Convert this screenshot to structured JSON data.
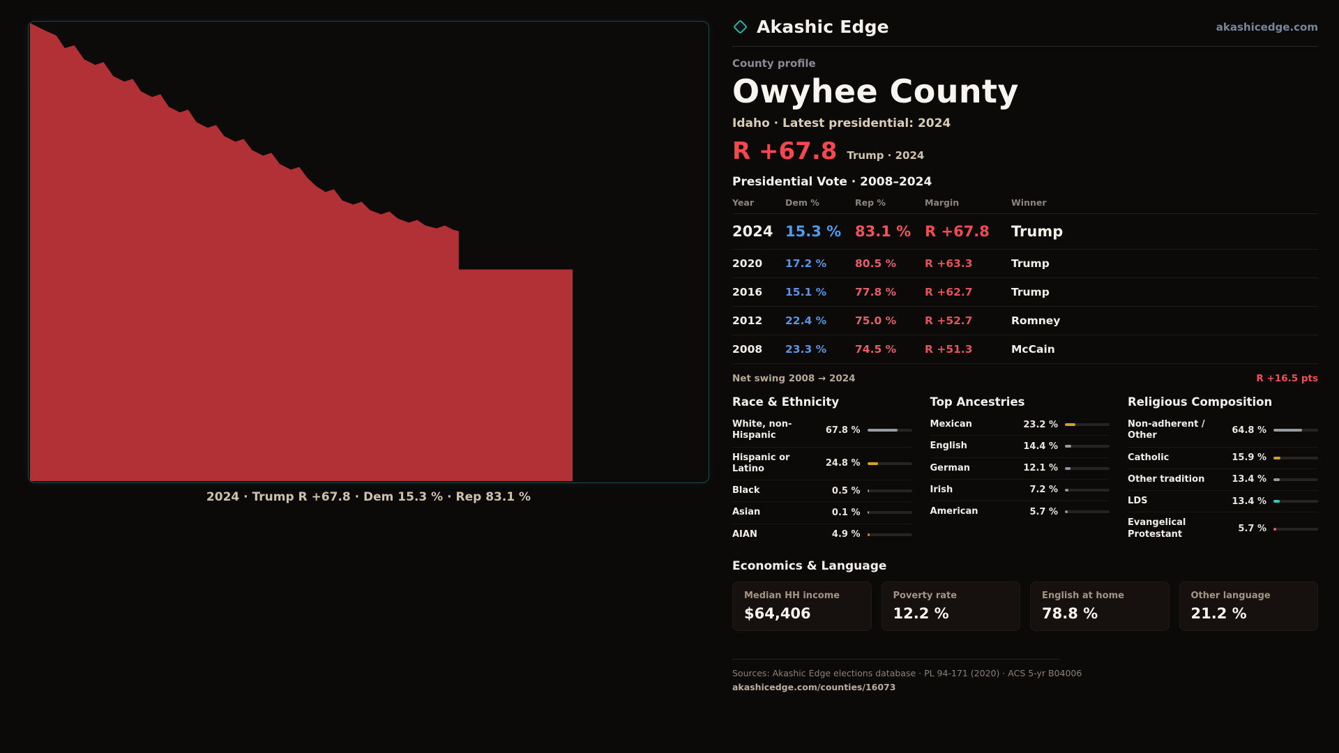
{
  "brand": {
    "name": "Akashic Edge",
    "domain": "akashicedge.com",
    "accent": "#2cb3ab"
  },
  "map": {
    "fill": "#b13137",
    "caption": "2024 · Trump R +67.8 · Dem 15.3 % · Rep 83.1 %"
  },
  "profile": {
    "kicker": "County profile",
    "title": "Owyhee County",
    "subtitle": "Idaho · Latest presidential: 2024",
    "headline_margin": "R +67.8",
    "headline_note": "Trump · 2024",
    "table_title": "Presidential Vote · 2008–2024"
  },
  "table": {
    "headers": [
      "Year",
      "Dem %",
      "Rep %",
      "Margin",
      "Winner"
    ],
    "rows": [
      {
        "year": "2024",
        "dem": "15.3 %",
        "rep": "83.1 %",
        "margin": "R +67.8",
        "winner": "Trump"
      },
      {
        "year": "2020",
        "dem": "17.2 %",
        "rep": "80.5 %",
        "margin": "R +63.3",
        "winner": "Trump"
      },
      {
        "year": "2016",
        "dem": "15.1 %",
        "rep": "77.8 %",
        "margin": "R +62.7",
        "winner": "Trump"
      },
      {
        "year": "2012",
        "dem": "22.4 %",
        "rep": "75.0 %",
        "margin": "R +52.7",
        "winner": "Romney"
      },
      {
        "year": "2008",
        "dem": "23.3 %",
        "rep": "74.5 %",
        "margin": "R +51.3",
        "winner": "McCain"
      }
    ]
  },
  "swing": {
    "label": "Net swing 2008 → 2024",
    "value": "R +16.5 pts"
  },
  "race": {
    "title": "Race & Ethnicity",
    "items": [
      {
        "label": "White, non-Hispanic",
        "value": "67.8 %",
        "pct": 67.8,
        "color": "#969ca1"
      },
      {
        "label": "Hispanic or Latino",
        "value": "24.8 %",
        "pct": 24.8,
        "color": "#d4a222"
      },
      {
        "label": "Black",
        "value": "0.5 %",
        "pct": 0.5,
        "color": "#969ca1"
      },
      {
        "label": "Asian",
        "value": "0.1 %",
        "pct": 0.1,
        "color": "#969ca1"
      },
      {
        "label": "AIAN",
        "value": "4.9 %",
        "pct": 4.9,
        "color": "#e2882a"
      }
    ]
  },
  "ancestry": {
    "title": "Top Ancestries",
    "items": [
      {
        "label": "Mexican",
        "value": "23.2 %",
        "pct": 23.2,
        "color": "#d4a222"
      },
      {
        "label": "English",
        "value": "14.4 %",
        "pct": 14.4,
        "color": "#969ca1"
      },
      {
        "label": "German",
        "value": "12.1 %",
        "pct": 12.1,
        "color": "#8d93ab"
      },
      {
        "label": "Irish",
        "value": "7.2 %",
        "pct": 7.2,
        "color": "#8d93ab"
      },
      {
        "label": "American",
        "value": "5.7 %",
        "pct": 5.7,
        "color": "#8d93ab"
      }
    ]
  },
  "religion": {
    "title": "Religious Composition",
    "items": [
      {
        "label": "Non-adherent / Other",
        "value": "64.8 %",
        "pct": 64.8,
        "color": "#969ca1"
      },
      {
        "label": "Catholic",
        "value": "15.9 %",
        "pct": 15.9,
        "color": "#d4a222"
      },
      {
        "label": "Other tradition",
        "value": "13.4 %",
        "pct": 13.4,
        "color": "#969ca1"
      },
      {
        "label": "LDS",
        "value": "13.4 %",
        "pct": 13.4,
        "color": "#3cc7c0"
      },
      {
        "label": "Evangelical Protestant",
        "value": "5.7 %",
        "pct": 5.7,
        "color": "#e0606e"
      }
    ]
  },
  "economics": {
    "title": "Economics & Language",
    "items": [
      {
        "label": "Median HH income",
        "value": "$64,406"
      },
      {
        "label": "Poverty rate",
        "value": "12.2 %"
      },
      {
        "label": "English at home",
        "value": "78.8 %"
      },
      {
        "label": "Other language",
        "value": "21.2 %"
      }
    ]
  },
  "footer": {
    "sources": "Sources: Akashic Edge elections database · PL 94-171 (2020) · ACS 5-yr B04006",
    "url": "akashicedge.com/counties/16073"
  }
}
